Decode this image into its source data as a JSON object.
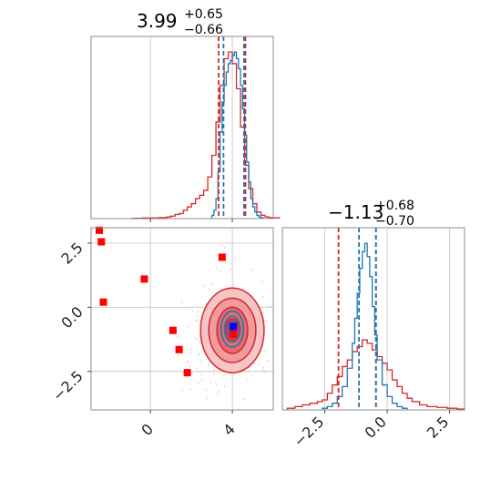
{
  "chart_data": [
    {
      "type": "histogram",
      "panel": "top-left",
      "title": {
        "value": "3.99",
        "plus": "+0.65",
        "minus": "−0.66"
      },
      "xlim": [
        -2.9,
        6.0
      ],
      "series": [
        {
          "name": "",
          "color": "#d62728",
          "x": [
            -0.9,
            -0.4,
            0.0,
            0.4,
            0.8,
            1.0,
            1.2,
            1.4,
            1.6,
            1.8,
            2.0,
            2.2,
            2.4,
            2.6,
            2.8,
            3.0,
            3.2,
            3.4,
            3.6,
            3.8,
            4.0,
            4.2,
            4.4,
            4.6,
            4.8,
            5.0,
            5.2,
            5.4,
            5.6,
            5.8
          ],
          "y": [
            0.2,
            0.4,
            0.4,
            0.6,
            1.0,
            1.5,
            2.5,
            3.0,
            5.0,
            7.0,
            9.0,
            12.0,
            14.0,
            17.0,
            25.0,
            38.0,
            58.0,
            80.0,
            96.0,
            100.0,
            93.0,
            78.0,
            55.0,
            32.0,
            18.0,
            9.0,
            4.0,
            2.0,
            1.0,
            0.5
          ]
        },
        {
          "name": "",
          "color": "#1f77b4",
          "x": [
            3.0,
            3.1,
            3.2,
            3.3,
            3.4,
            3.5,
            3.6,
            3.7,
            3.8,
            3.9,
            4.0,
            4.1,
            4.2,
            4.3,
            4.4,
            4.5,
            4.6,
            4.7,
            4.8,
            4.9,
            5.0,
            5.1,
            5.2,
            5.3,
            5.4
          ],
          "y": [
            2,
            5,
            12,
            28,
            52,
            70,
            80,
            88,
            93,
            95,
            98,
            100,
            96,
            90,
            80,
            66,
            50,
            34,
            22,
            12,
            7,
            4,
            2,
            1,
            0.5
          ]
        }
      ],
      "quantile_lines": [
        {
          "color": "#d62728",
          "x": [
            3.33,
            4.64
          ]
        },
        {
          "color": "#1f77b4",
          "x": [
            3.57,
            4.57
          ]
        }
      ]
    },
    {
      "type": "histogram",
      "panel": "bottom-right",
      "title": {
        "value": "−1.13",
        "plus": "+0.68",
        "minus": "−0.70"
      },
      "xlim": [
        -4.2,
        3.1
      ],
      "xticks": [
        "−2.5",
        "0.0",
        "2.5"
      ],
      "xtick_values": [
        -2.5,
        0.0,
        2.5
      ],
      "series": [
        {
          "name": "",
          "color": "#d62728",
          "x": [
            -4.0,
            -3.7,
            -3.4,
            -3.1,
            -2.8,
            -2.6,
            -2.4,
            -2.2,
            -2.0,
            -1.8,
            -1.6,
            -1.4,
            -1.2,
            -1.0,
            -0.8,
            -0.6,
            -0.4,
            -0.2,
            0.0,
            0.2,
            0.4,
            0.6,
            0.8,
            1.0,
            1.3,
            1.6,
            2.0,
            2.4,
            2.8
          ],
          "y": [
            1,
            2,
            3,
            4,
            5,
            6,
            10,
            15,
            20,
            26,
            30,
            35,
            38,
            42,
            40,
            36,
            32,
            28,
            24,
            18,
            14,
            10,
            7,
            5,
            3,
            2,
            1.5,
            1,
            0.5
          ]
        },
        {
          "name": "",
          "color": "#1f77b4",
          "x": [
            -2.6,
            -2.4,
            -2.2,
            -2.0,
            -1.8,
            -1.6,
            -1.4,
            -1.3,
            -1.2,
            -1.1,
            -1.0,
            -0.9,
            -0.8,
            -0.7,
            -0.6,
            -0.5,
            -0.4,
            -0.2,
            0.0,
            0.2,
            0.4,
            0.6
          ],
          "y": [
            1,
            2,
            4,
            8,
            14,
            25,
            40,
            55,
            70,
            85,
            95,
            100,
            92,
            80,
            62,
            45,
            30,
            15,
            8,
            4,
            2,
            1
          ]
        }
      ],
      "quantile_lines": [
        {
          "color": "#d62728",
          "x": [
            -1.95,
            -0.45
          ]
        },
        {
          "color": "#1f77b4",
          "x": [
            -1.13,
            -0.45
          ]
        }
      ]
    },
    {
      "type": "scatter",
      "panel": "bottom-left",
      "xlim": [
        -2.9,
        6.0
      ],
      "ylim": [
        -4.0,
        3.1
      ],
      "xticks": [
        "0",
        "4"
      ],
      "xtick_values": [
        0,
        4
      ],
      "yticks": [
        "2.5",
        "0.0",
        "−2.5"
      ],
      "ytick_values": [
        2.5,
        0.0,
        -2.5
      ],
      "series": [
        {
          "name": "",
          "marker": "square",
          "color": "#ff0000",
          "x": [
            -2.5,
            -2.4,
            -2.3,
            -0.3,
            3.5,
            1.1,
            1.4,
            1.8
          ],
          "y": [
            3.0,
            2.55,
            0.2,
            1.1,
            1.95,
            -0.9,
            -1.65,
            -2.55
          ]
        },
        {
          "name": "",
          "marker": "square",
          "color": "#0000ff",
          "x": [
            4.05
          ],
          "y": [
            -0.75
          ]
        },
        {
          "name": "",
          "marker": "square",
          "color": "#ff0000",
          "x": [
            4.05
          ],
          "y": [
            -1.05
          ]
        }
      ],
      "contours_red": {
        "center": [
          4.0,
          -0.9
        ],
        "levels": [
          [
            1.55,
            1.65
          ],
          [
            1.15,
            1.25
          ],
          [
            0.75,
            0.9
          ],
          [
            0.35,
            0.45
          ]
        ]
      },
      "contours_blue": {
        "center": [
          4.0,
          -0.85
        ],
        "levels": [
          [
            0.55,
            0.7
          ],
          [
            0.38,
            0.5
          ],
          [
            0.2,
            0.3
          ]
        ]
      }
    }
  ]
}
